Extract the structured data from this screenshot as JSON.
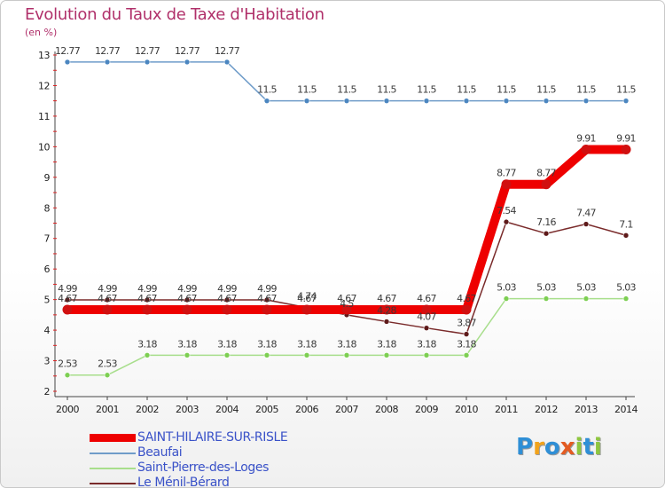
{
  "title": "Evolution du Taux de Taxe d'Habitation",
  "unit_label": "(en %)",
  "logo": {
    "letters": [
      "P",
      "r",
      "o",
      "x",
      "i",
      "t",
      "i"
    ],
    "colors": [
      "#2f8fd6",
      "#f2a31b",
      "#2f8fd6",
      "#e35b22",
      "#8ec63f",
      "#2f8fd6",
      "#8ec63f"
    ]
  },
  "chart_data": {
    "type": "line",
    "title": "Evolution du Taux de Taxe d'Habitation",
    "ylabel": "(en %)",
    "xlabel": "",
    "x": [
      "2000",
      "2001",
      "2002",
      "2003",
      "2004",
      "2005",
      "2006",
      "2007",
      "2008",
      "2009",
      "2010",
      "2011",
      "2012",
      "2013",
      "2014"
    ],
    "yticks": [
      2,
      3,
      4,
      5,
      6,
      7,
      8,
      9,
      10,
      11,
      12,
      13
    ],
    "ylim": [
      2,
      13
    ],
    "legend_placement": "bottom-left",
    "series": [
      {
        "name": "SAINT-HILAIRE-SUR-RISLE",
        "color": "#ee0000",
        "marker_color": "#d11010",
        "thick": true,
        "values": [
          4.67,
          4.67,
          4.67,
          4.67,
          4.67,
          4.67,
          4.67,
          4.67,
          4.67,
          4.67,
          4.67,
          8.77,
          8.77,
          9.91,
          9.91
        ],
        "labels": [
          "4.67",
          "4.67",
          "4.67",
          "4.67",
          "4.67",
          "4.67",
          "4.67",
          "4.67",
          "4.67",
          "4.67",
          "4.67",
          "8.77",
          "8.77",
          "9.91",
          "9.91"
        ]
      },
      {
        "name": "Beaufai",
        "color": "#6f9cc9",
        "marker_color": "#4b86c0",
        "thick": false,
        "values": [
          12.77,
          12.77,
          12.77,
          12.77,
          12.77,
          11.5,
          11.5,
          11.5,
          11.5,
          11.5,
          11.5,
          11.5,
          11.5,
          11.5,
          11.5
        ],
        "labels": [
          "12.77",
          "12.77",
          "12.77",
          "12.77",
          "12.77",
          "11.5",
          "11.5",
          "11.5",
          "11.5",
          "11.5",
          "11.5",
          "11.5",
          "11.5",
          "11.5",
          "11.5"
        ]
      },
      {
        "name": "Saint-Pierre-des-Loges",
        "color": "#a8de8c",
        "marker_color": "#7dcf52",
        "thick": false,
        "values": [
          2.53,
          2.53,
          3.18,
          3.18,
          3.18,
          3.18,
          3.18,
          3.18,
          3.18,
          3.18,
          3.18,
          5.03,
          5.03,
          5.03,
          5.03
        ],
        "labels": [
          "2.53",
          "2.53",
          "3.18",
          "3.18",
          "3.18",
          "3.18",
          "3.18",
          "3.18",
          "3.18",
          "3.18",
          "3.18",
          "5.03",
          "5.03",
          "5.03",
          "5.03"
        ]
      },
      {
        "name": "Le Ménil-Bérard",
        "color": "#7a2b2b",
        "marker_color": "#5e1a1a",
        "thick": false,
        "values": [
          4.99,
          4.99,
          4.99,
          4.99,
          4.99,
          4.99,
          4.74,
          4.5,
          4.28,
          4.07,
          3.87,
          7.54,
          7.16,
          7.47,
          7.1
        ],
        "labels": [
          "4.99",
          "4.99",
          "4.99",
          "4.99",
          "4.99",
          "4.99",
          "4.74",
          "4.5",
          "4.28",
          "4.07",
          "3.87",
          "7.54",
          "7.16",
          "7.47",
          "7.1"
        ]
      }
    ]
  }
}
